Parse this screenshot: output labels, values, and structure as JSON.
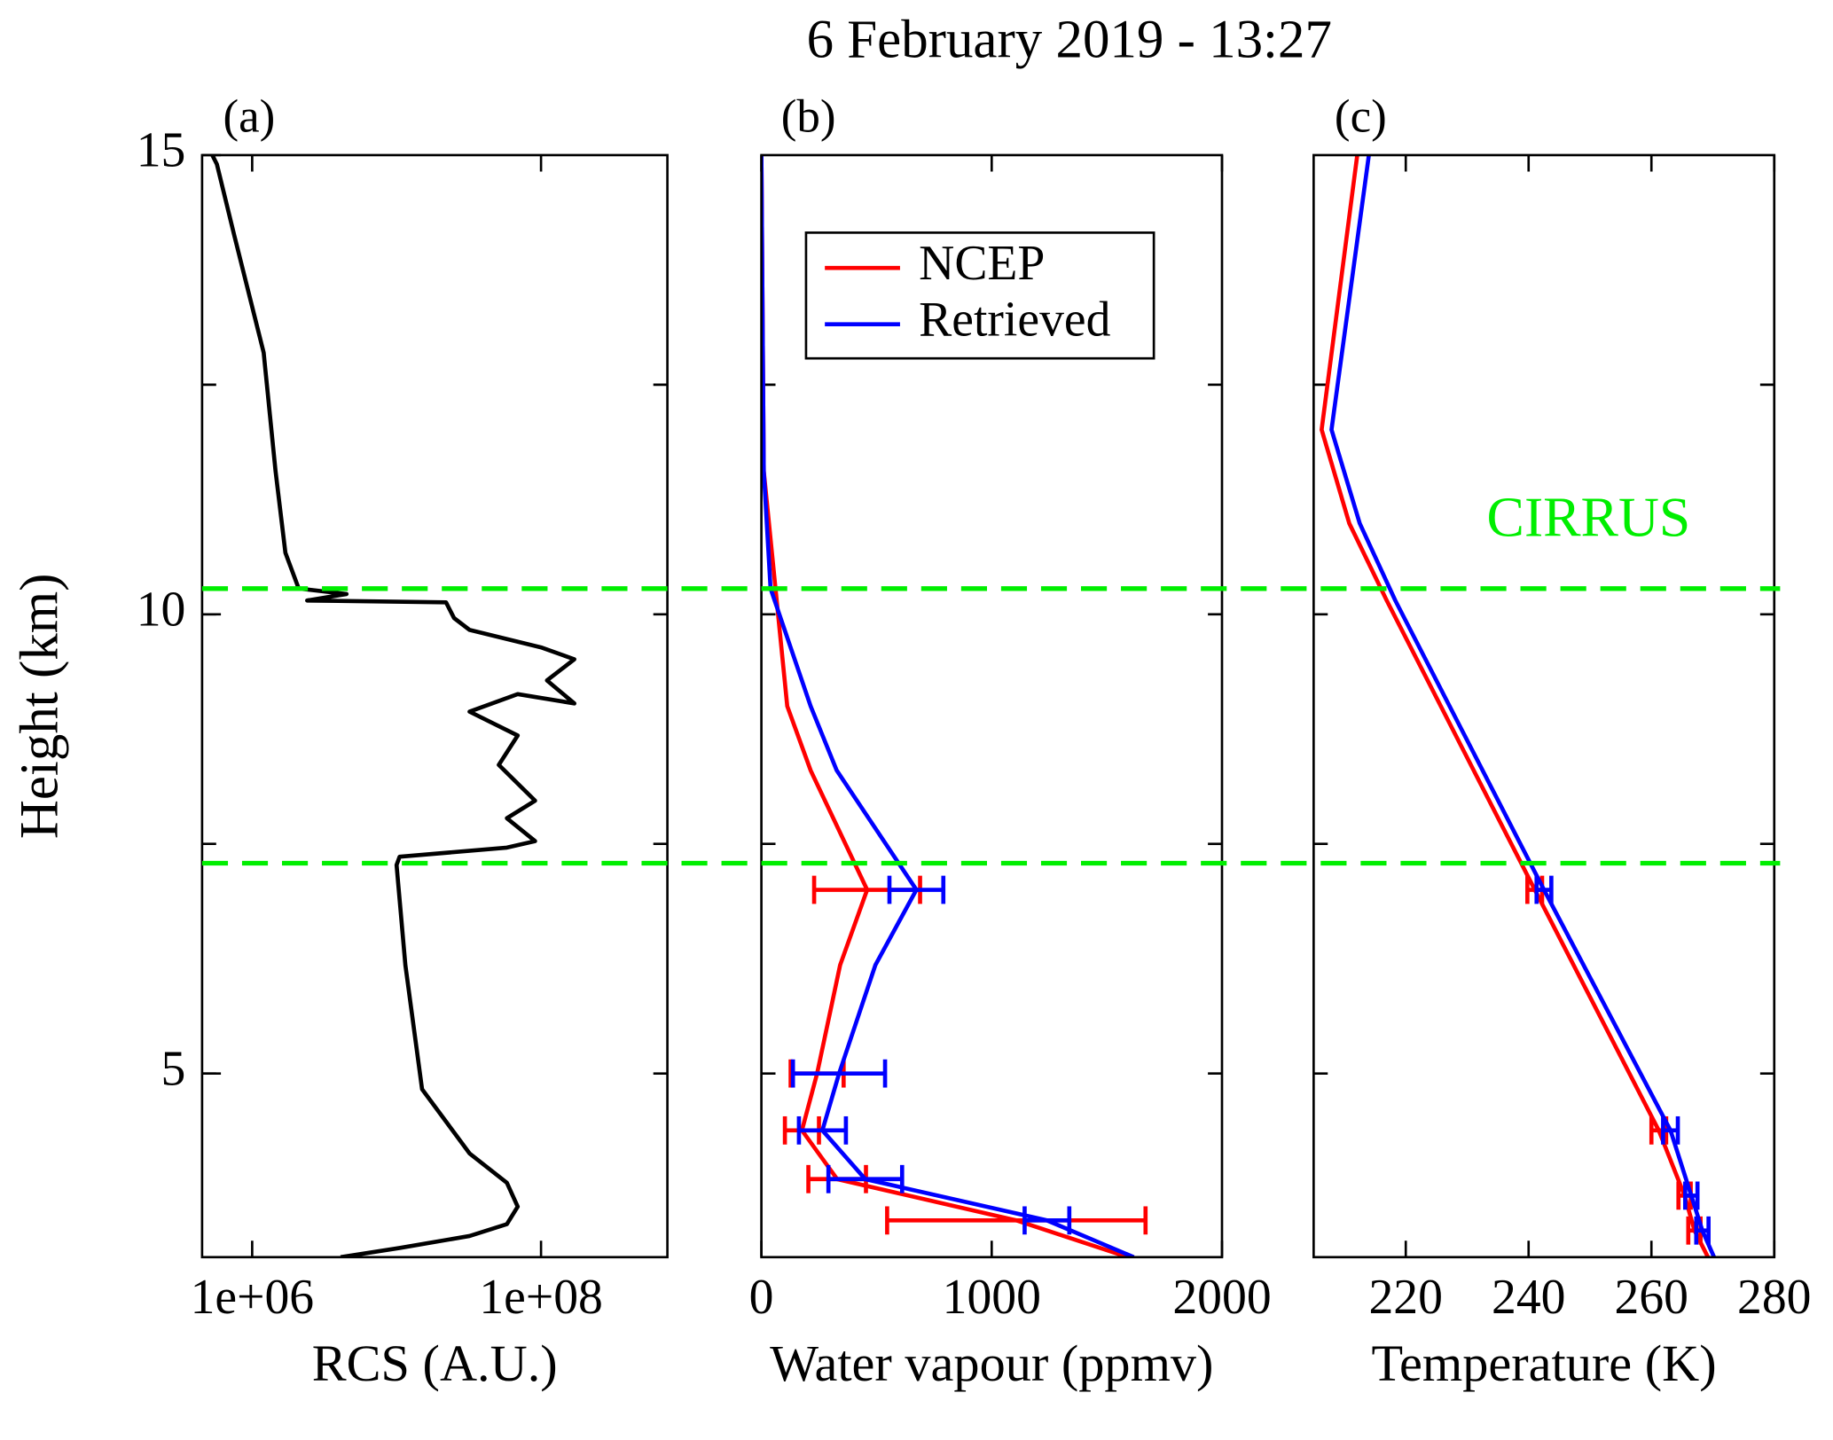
{
  "title": "6 February 2019 - 13:27",
  "cirrus": {
    "label": "CIRRUS",
    "heights": [
      10.28,
      7.29
    ],
    "color": "#00ee00"
  },
  "chart_data": [
    {
      "type": "line",
      "panel_label": "(a)",
      "xlabel": "RCS (A.U.)",
      "ylabel": "Height (km)",
      "xscale": "log",
      "xlim": [
        450000,
        750000000
      ],
      "xticks": [
        {
          "value": 1000000,
          "label": "1e+06"
        },
        {
          "value": 100000000,
          "label": "1e+08"
        }
      ],
      "ylim": [
        3,
        15
      ],
      "yticks": [
        5,
        10,
        15
      ],
      "ytick_marks": [
        5,
        7.5,
        10,
        12.5
      ],
      "y": [
        3.0,
        3.1,
        3.23,
        3.36,
        3.55,
        3.81,
        4.13,
        4.83,
        6.18,
        7.27,
        7.36,
        7.46,
        7.53,
        7.78,
        7.97,
        8.36,
        8.68,
        8.94,
        9.13,
        9.03,
        9.28,
        9.51,
        9.64,
        9.83,
        9.96,
        10.13,
        10.15,
        10.22,
        10.28,
        10.67,
        11.56,
        12.85,
        14.13,
        14.9,
        15.0
      ],
      "series": [
        {
          "color": "#000000",
          "values": [
            4100000,
            10500000,
            32000000,
            58000000,
            69000000,
            58000000,
            32000000,
            15000000,
            11500000,
            10000000,
            10500000,
            58000000,
            91000000,
            58000000,
            91000000,
            51000000,
            69000000,
            32000000,
            69000000,
            170000000,
            110000000,
            170000000,
            100000000,
            32000000,
            25000000,
            22000000,
            2400000,
            4500000,
            2100000,
            1700000,
            1450000,
            1200000,
            750000,
            570000,
            530000
          ]
        }
      ]
    },
    {
      "type": "line",
      "panel_label": "(b)",
      "xlabel": "Water vapour (ppmv)",
      "xlim": [
        0,
        2000
      ],
      "xticks": [
        0,
        1000,
        2000
      ],
      "ylim": [
        3,
        15
      ],
      "ytick_marks": [
        5,
        7.5,
        10,
        12.5
      ],
      "legend": "upper left",
      "y": [
        15,
        11.56,
        10.28,
        9.0,
        8.3,
        7.0,
        6.18,
        5.0,
        4.38,
        3.85,
        3.4,
        3.0
      ],
      "series": [
        {
          "name": "NCEP",
          "color": "#ff0000",
          "values": [
            0,
            10,
            61,
            112,
            214,
            459,
            342,
            242,
            176,
            329,
            1107,
            1592
          ],
          "errors": [
            null,
            null,
            null,
            null,
            null,
            230,
            null,
            115,
            74,
            125,
            561,
            null
          ]
        },
        {
          "name": "Retrieved",
          "color": "#0000ff",
          "values": [
            0,
            10,
            40,
            214,
            327,
            673,
            495,
            337,
            265,
            451,
            1240,
            1617
          ],
          "errors": [
            null,
            null,
            null,
            null,
            null,
            117,
            null,
            200,
            102,
            160,
            97,
            null
          ]
        }
      ]
    },
    {
      "type": "line",
      "panel_label": "(c)",
      "xlabel": "Temperature (K)",
      "xlim": [
        205,
        280
      ],
      "xticks": [
        220,
        240,
        260,
        280
      ],
      "ylim": [
        3,
        15
      ],
      "ytick_marks": [
        5,
        7.5,
        10,
        12.5
      ],
      "y": [
        15,
        12.01,
        10.99,
        10.15,
        7.0,
        4.38,
        3.67,
        3.29,
        3.0
      ],
      "series": [
        {
          "color": "#ff0000",
          "values": [
            212.1,
            206.3,
            210.8,
            216.9,
            241,
            261.2,
            265.4,
            267,
            269.2
          ],
          "errors": [
            null,
            null,
            null,
            null,
            1.2,
            1.2,
            1,
            1,
            null
          ]
        },
        {
          "color": "#0000ff",
          "values": [
            214,
            207.9,
            212.5,
            218.3,
            242.5,
            263.1,
            266.5,
            268.3,
            270.2
          ],
          "errors": [
            null,
            null,
            null,
            null,
            1.2,
            1.2,
            1,
            1,
            null
          ]
        }
      ]
    }
  ]
}
